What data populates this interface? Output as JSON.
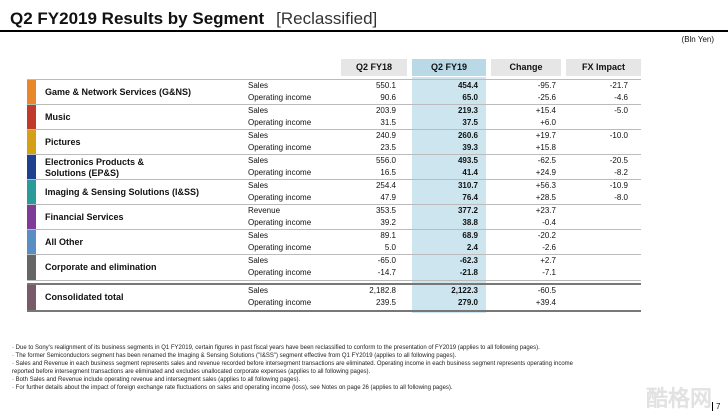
{
  "title": "Q2 FY2019  Results by Segment",
  "subtitle": "[Reclassified]",
  "unit": "(Bln Yen)",
  "columns": {
    "prev": "Q2 FY18",
    "curr": "Q2 FY19",
    "change": "Change",
    "fx": "FX Impact"
  },
  "segments": [
    {
      "name": "Game & Network Services (G&NS)",
      "color": "#e8862a",
      "rows": [
        {
          "label": "Sales",
          "prev": "550.1",
          "curr": "454.4",
          "change": "-95.7",
          "fx": "-21.7"
        },
        {
          "label": "Operating income",
          "prev": "90.6",
          "curr": "65.0",
          "change": "-25.6",
          "fx": "-4.6"
        }
      ]
    },
    {
      "name": "Music",
      "color": "#c0392b",
      "rows": [
        {
          "label": "Sales",
          "prev": "203.9",
          "curr": "219.3",
          "change": "+15.4",
          "fx": "-5.0"
        },
        {
          "label": "Operating income",
          "prev": "31.5",
          "curr": "37.5",
          "change": "+6.0",
          "fx": ""
        }
      ]
    },
    {
      "name": "Pictures",
      "color": "#d4a017",
      "rows": [
        {
          "label": "Sales",
          "prev": "240.9",
          "curr": "260.6",
          "change": "+19.7",
          "fx": "-10.0"
        },
        {
          "label": "Operating income",
          "prev": "23.5",
          "curr": "39.3",
          "change": "+15.8",
          "fx": ""
        }
      ]
    },
    {
      "name": "Electronics Products & Solutions (EP&S)",
      "color": "#1f3f8f",
      "rows": [
        {
          "label": "Sales",
          "prev": "556.0",
          "curr": "493.5",
          "change": "-62.5",
          "fx": "-20.5"
        },
        {
          "label": "Operating income",
          "prev": "16.5",
          "curr": "41.4",
          "change": "+24.9",
          "fx": "-8.2"
        }
      ]
    },
    {
      "name": "Imaging & Sensing Solutions (I&SS)",
      "color": "#2a9a9a",
      "rows": [
        {
          "label": "Sales",
          "prev": "254.4",
          "curr": "310.7",
          "change": "+56.3",
          "fx": "-10.9"
        },
        {
          "label": "Operating income",
          "prev": "47.9",
          "curr": "76.4",
          "change": "+28.5",
          "fx": "-8.0"
        }
      ]
    },
    {
      "name": "Financial Services",
      "color": "#7d3c98",
      "rows": [
        {
          "label": "Revenue",
          "prev": "353.5",
          "curr": "377.2",
          "change": "+23.7",
          "fx": ""
        },
        {
          "label": "Operating income",
          "prev": "39.2",
          "curr": "38.8",
          "change": "-0.4",
          "fx": ""
        }
      ]
    },
    {
      "name": "All Other",
      "color": "#5a8fc4",
      "rows": [
        {
          "label": "Sales",
          "prev": "89.1",
          "curr": "68.9",
          "change": "-20.2",
          "fx": ""
        },
        {
          "label": "Operating income",
          "prev": "5.0",
          "curr": "2.4",
          "change": "-2.6",
          "fx": ""
        }
      ]
    },
    {
      "name": "Corporate and elimination",
      "color": "#666666",
      "rows": [
        {
          "label": "Sales",
          "prev": "-65.0",
          "curr": "-62.3",
          "change": "+2.7",
          "fx": ""
        },
        {
          "label": "Operating income",
          "prev": "-14.7",
          "curr": "-21.8",
          "change": "-7.1",
          "fx": ""
        }
      ]
    }
  ],
  "total": {
    "name": "Consolidated total",
    "color": "#7a5a6a",
    "rows": [
      {
        "label": "Sales",
        "prev": "2,182.8",
        "curr": "2,122.3",
        "change": "-60.5",
        "fx": ""
      },
      {
        "label": "Operating income",
        "prev": "239.5",
        "curr": "279.0",
        "change": "+39.4",
        "fx": ""
      }
    ]
  },
  "notes": [
    "· Due to Sony's realignment of its business segments in Q1 FY2019, certain figures in past fiscal years have been reclassified to conform to the presentation of FY2019 (applies to all following pages).",
    "· The former Semiconductors segment has been renamed the Imaging & Sensing Solutions (\"I&SS\") segment effective from Q1 FY2019 (applies to all following pages).",
    "· Sales and Revenue in each business segment represents sales and revenue recorded before intersegment transactions are eliminated. Operating income in each business segment represents operating income",
    "  reported before intersegment transactions are eliminated and excludes unallocated corporate expenses (applies to all following pages).",
    "· Both Sales and Revenue include operating revenue and intersegment sales (applies to all following pages).",
    "· For further details about the impact of foreign exchange rate fluctuations on sales and operating income (loss), see Notes on page 26 (applies to all following pages)."
  ],
  "page_number": "7",
  "watermark": "酷格网"
}
